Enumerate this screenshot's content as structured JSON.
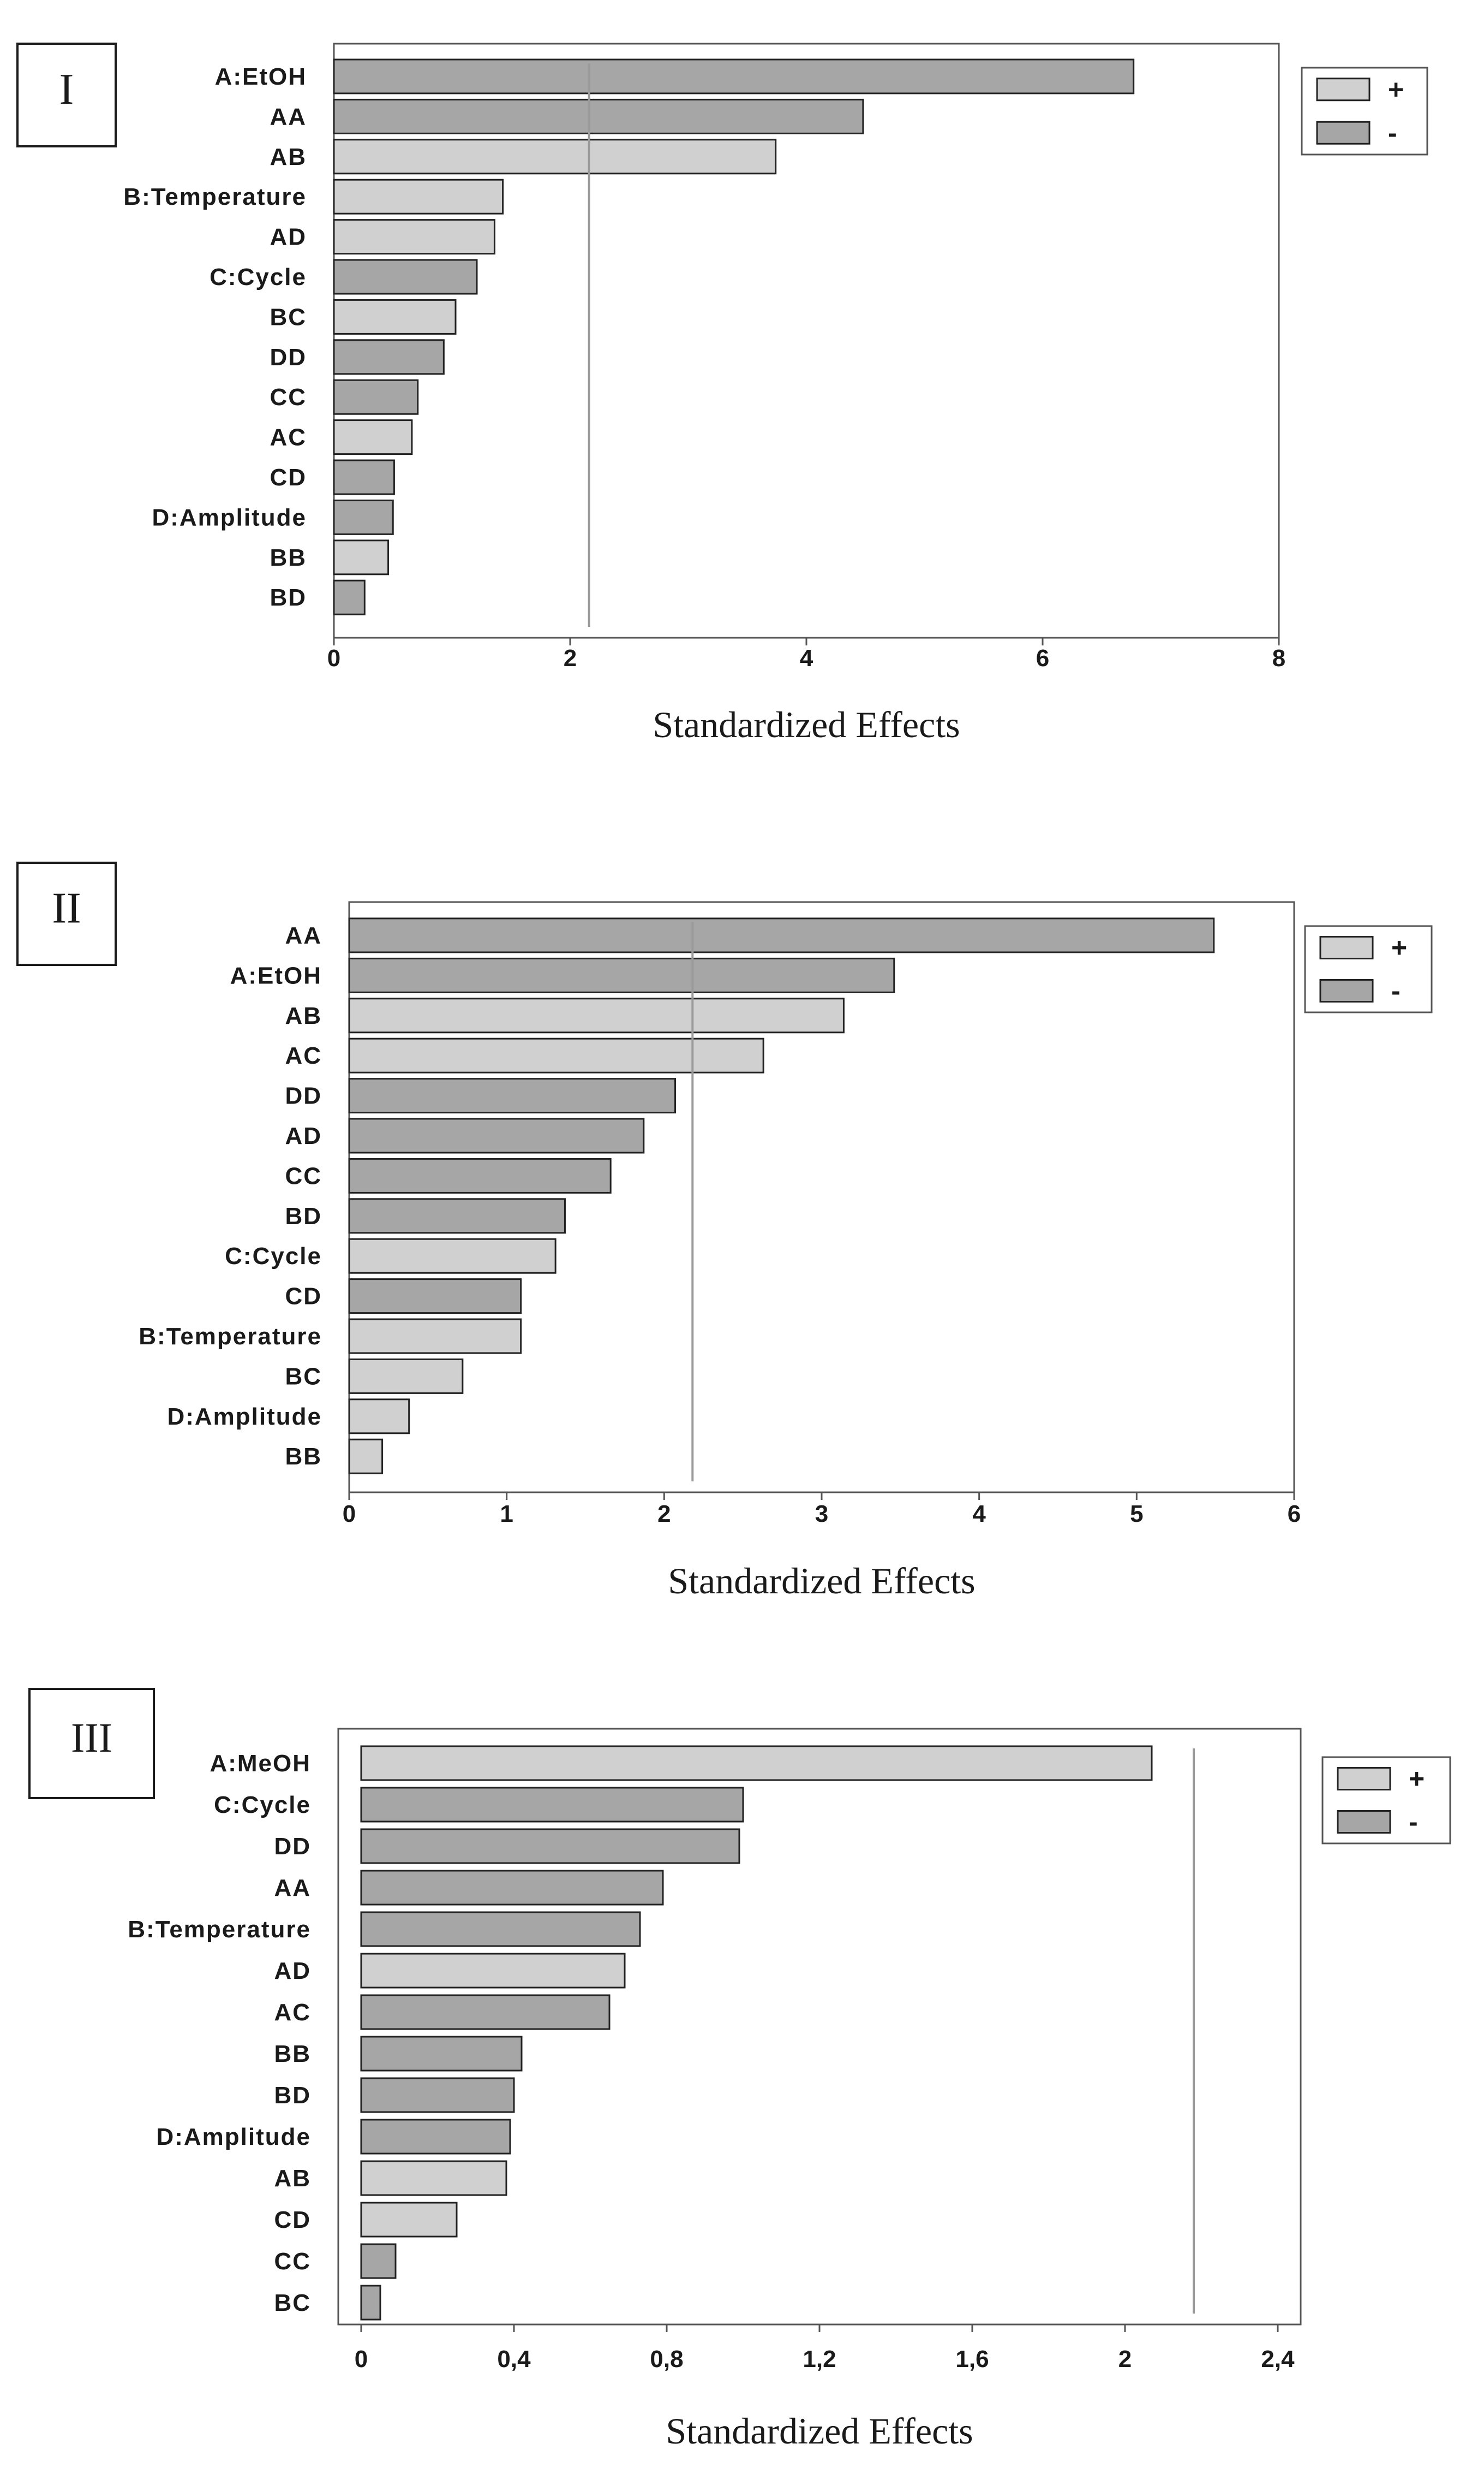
{
  "chart_data": [
    {
      "type": "bar",
      "orientation": "horizontal",
      "panel_label": "I",
      "title": "",
      "xlabel": "Standardized Effects",
      "ylabel": "",
      "xlim": [
        0,
        8
      ],
      "xticks": [
        0,
        2,
        4,
        6,
        8
      ],
      "xtick_labels": [
        "0",
        "2",
        "4",
        "6",
        "8"
      ],
      "reference_line": 2.16,
      "legend": {
        "position": "top-right",
        "entries": [
          {
            "label": "+",
            "color": "#d0d0d0"
          },
          {
            "label": "-",
            "color": "#a6a6a6"
          }
        ]
      },
      "bars": [
        {
          "label": "A:EtOH",
          "value": 6.77,
          "sign": "-"
        },
        {
          "label": "AA",
          "value": 4.48,
          "sign": "-"
        },
        {
          "label": "AB",
          "value": 3.74,
          "sign": "+"
        },
        {
          "label": "B:Temperature",
          "value": 1.43,
          "sign": "+"
        },
        {
          "label": "AD",
          "value": 1.36,
          "sign": "+"
        },
        {
          "label": "C:Cycle",
          "value": 1.21,
          "sign": "-"
        },
        {
          "label": "BC",
          "value": 1.03,
          "sign": "+"
        },
        {
          "label": "DD",
          "value": 0.93,
          "sign": "-"
        },
        {
          "label": "CC",
          "value": 0.71,
          "sign": "-"
        },
        {
          "label": "AC",
          "value": 0.66,
          "sign": "+"
        },
        {
          "label": "CD",
          "value": 0.51,
          "sign": "-"
        },
        {
          "label": "D:Amplitude",
          "value": 0.5,
          "sign": "-"
        },
        {
          "label": "BB",
          "value": 0.46,
          "sign": "+"
        },
        {
          "label": "BD",
          "value": 0.26,
          "sign": "-"
        }
      ]
    },
    {
      "type": "bar",
      "orientation": "horizontal",
      "panel_label": "II",
      "title": "",
      "xlabel": "Standardized Effects",
      "ylabel": "",
      "xlim": [
        0,
        6
      ],
      "xticks": [
        0,
        1,
        2,
        3,
        4,
        5,
        6
      ],
      "xtick_labels": [
        "0",
        "1",
        "2",
        "3",
        "4",
        "5",
        "6"
      ],
      "reference_line": 2.18,
      "legend": {
        "position": "top-right",
        "entries": [
          {
            "label": "+",
            "color": "#d0d0d0"
          },
          {
            "label": "-",
            "color": "#a6a6a6"
          }
        ]
      },
      "bars": [
        {
          "label": "AA",
          "value": 5.49,
          "sign": "-"
        },
        {
          "label": "A:EtOH",
          "value": 3.46,
          "sign": "-"
        },
        {
          "label": "AB",
          "value": 3.14,
          "sign": "+"
        },
        {
          "label": "AC",
          "value": 2.63,
          "sign": "+"
        },
        {
          "label": "DD",
          "value": 2.07,
          "sign": "-"
        },
        {
          "label": "AD",
          "value": 1.87,
          "sign": "-"
        },
        {
          "label": "CC",
          "value": 1.66,
          "sign": "-"
        },
        {
          "label": "BD",
          "value": 1.37,
          "sign": "-"
        },
        {
          "label": "C:Cycle",
          "value": 1.31,
          "sign": "+"
        },
        {
          "label": "CD",
          "value": 1.09,
          "sign": "-"
        },
        {
          "label": "B:Temperature",
          "value": 1.09,
          "sign": "+"
        },
        {
          "label": "BC",
          "value": 0.72,
          "sign": "+"
        },
        {
          "label": "D:Amplitude",
          "value": 0.38,
          "sign": "+"
        },
        {
          "label": "BB",
          "value": 0.21,
          "sign": "+"
        }
      ]
    },
    {
      "type": "bar",
      "orientation": "horizontal",
      "panel_label": "III",
      "title": "",
      "xlabel": "Standardized Effects",
      "ylabel": "",
      "xlim": [
        -0.06,
        2.46
      ],
      "xticks": [
        0,
        0.4,
        0.8,
        1.2,
        1.6,
        2,
        2.4
      ],
      "xtick_labels": [
        "0",
        "0,4",
        "0,8",
        "1,2",
        "1,6",
        "2",
        "2,4"
      ],
      "reference_line": 2.18,
      "legend": {
        "position": "top-right",
        "entries": [
          {
            "label": "+",
            "color": "#d0d0d0"
          },
          {
            "label": "-",
            "color": "#a6a6a6"
          }
        ]
      },
      "bars": [
        {
          "label": "A:MeOH",
          "value": 2.07,
          "sign": "+"
        },
        {
          "label": "C:Cycle",
          "value": 1.0,
          "sign": "-"
        },
        {
          "label": "DD",
          "value": 0.99,
          "sign": "-"
        },
        {
          "label": "AA",
          "value": 0.79,
          "sign": "-"
        },
        {
          "label": "B:Temperature",
          "value": 0.73,
          "sign": "-"
        },
        {
          "label": "AD",
          "value": 0.69,
          "sign": "+"
        },
        {
          "label": "AC",
          "value": 0.65,
          "sign": "-"
        },
        {
          "label": "BB",
          "value": 0.42,
          "sign": "-"
        },
        {
          "label": "BD",
          "value": 0.4,
          "sign": "-"
        },
        {
          "label": "D:Amplitude",
          "value": 0.39,
          "sign": "-"
        },
        {
          "label": "AB",
          "value": 0.38,
          "sign": "+"
        },
        {
          "label": "CD",
          "value": 0.25,
          "sign": "+"
        },
        {
          "label": "CC",
          "value": 0.09,
          "sign": "-"
        },
        {
          "label": "BC",
          "value": 0.05,
          "sign": "-"
        }
      ]
    }
  ]
}
